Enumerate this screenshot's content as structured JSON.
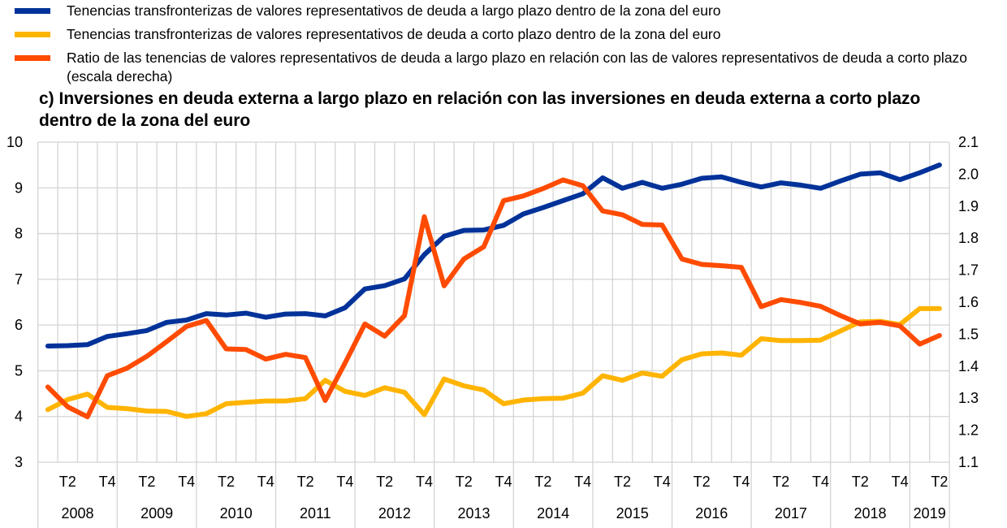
{
  "legend": [
    {
      "label": "Tenencias transfronterizas de valores representativos de deuda a largo plazo dentro de la zona del euro",
      "color": "#003299"
    },
    {
      "label": "Tenencias transfronterizas de valores representativos de deuda a corto plazo dentro de la zona del euro",
      "color": "#FFB400"
    },
    {
      "label": "Ratio de las tenencias de valores representativos de deuda a largo plazo en relación con las de valores representativos de deuda a corto plazo (escala derecha)",
      "color": "#FF4B00"
    }
  ],
  "chart_data": {
    "type": "line",
    "title": "c) Inversiones en deuda externa a largo plazo en relación con las inversiones en deuda externa a corto plazo dentro de la zona del euro",
    "x_start": "2008 T1",
    "x_end": "2019 T2",
    "quarter_tick_labels": [
      "T2",
      "T4"
    ],
    "year_labels": [
      "2008",
      "2009",
      "2010",
      "2011",
      "2012",
      "2013",
      "2014",
      "2015",
      "2016",
      "2017",
      "2018",
      "2019"
    ],
    "y_left": {
      "min": 3,
      "max": 10,
      "ticks": [
        "3",
        "4",
        "5",
        "6",
        "7",
        "8",
        "9",
        "10"
      ]
    },
    "y_right": {
      "min": 1.1,
      "max": 2.1,
      "ticks": [
        "1.1",
        "1.2",
        "1.3",
        "1.4",
        "1.5",
        "1.6",
        "1.7",
        "1.8",
        "1.9",
        "2.0",
        "2.1"
      ]
    },
    "grid": true,
    "series": [
      {
        "name": "Tenencias transfronterizas de valores representativos de deuda a largo plazo dentro de la zona del euro",
        "axis": "left",
        "color": "#003299",
        "values": [
          5.54,
          5.55,
          5.57,
          5.75,
          5.81,
          5.88,
          6.06,
          6.11,
          6.25,
          6.22,
          6.26,
          6.17,
          6.24,
          6.25,
          6.2,
          6.38,
          6.79,
          6.86,
          7.01,
          7.54,
          7.94,
          8.07,
          8.08,
          8.18,
          8.43,
          8.57,
          8.72,
          8.87,
          9.22,
          8.99,
          9.12,
          8.99,
          9.08,
          9.21,
          9.24,
          9.12,
          9.02,
          9.11,
          9.06,
          8.99,
          9.15,
          9.3,
          9.33,
          9.18,
          9.33,
          9.5
        ]
      },
      {
        "name": "Tenencias transfronterizas de valores representativos de deuda a corto plazo dentro de la zona del euro",
        "axis": "left",
        "color": "#FFB400",
        "values": [
          4.15,
          4.37,
          4.49,
          4.2,
          4.17,
          4.12,
          4.11,
          4.0,
          4.06,
          4.28,
          4.31,
          4.34,
          4.34,
          4.39,
          4.79,
          4.55,
          4.46,
          4.63,
          4.53,
          4.04,
          4.82,
          4.67,
          4.58,
          4.28,
          4.36,
          4.39,
          4.4,
          4.51,
          4.89,
          4.79,
          4.95,
          4.88,
          5.24,
          5.37,
          5.39,
          5.34,
          5.7,
          5.66,
          5.66,
          5.67,
          5.87,
          6.07,
          6.08,
          6.01,
          6.36,
          6.36
        ]
      },
      {
        "name": "Ratio de las tenencias de valores representativos de deuda a largo plazo en relación con las de valores representativos de deuda a corto plazo (escala derecha)",
        "axis": "right",
        "color": "#FF4B00",
        "values": [
          1.335,
          1.273,
          1.242,
          1.37,
          1.394,
          1.431,
          1.477,
          1.524,
          1.543,
          1.454,
          1.452,
          1.422,
          1.437,
          1.427,
          1.293,
          1.41,
          1.532,
          1.494,
          1.558,
          1.867,
          1.651,
          1.735,
          1.773,
          1.917,
          1.932,
          1.955,
          1.982,
          1.964,
          1.885,
          1.873,
          1.843,
          1.841,
          1.735,
          1.718,
          1.714,
          1.709,
          1.586,
          1.608,
          1.599,
          1.587,
          1.558,
          1.532,
          1.537,
          1.526,
          1.469,
          1.496
        ]
      }
    ]
  }
}
